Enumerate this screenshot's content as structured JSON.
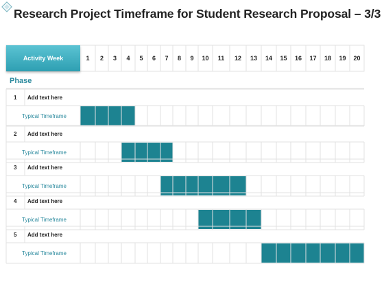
{
  "title": "Research Project Timeframe for Student Research Proposal – 3/3",
  "header_label": "Activity Week",
  "weeks": [
    "1",
    "2",
    "3",
    "4",
    "5",
    "6",
    "7",
    "8",
    "9",
    "10",
    "11",
    "12",
    "13",
    "14",
    "15",
    "16",
    "17",
    "18",
    "19",
    "20"
  ],
  "phase_label": "Phase",
  "bar_color": "#1d8391",
  "phases": [
    {
      "num": "1",
      "task": "Add text here",
      "timeframe": "Typical Timeframe",
      "start_week": 1,
      "end_week": 4
    },
    {
      "num": "2",
      "task": "Add text here",
      "timeframe": "Typical Timeframe",
      "start_week": 4,
      "end_week": 7
    },
    {
      "num": "3",
      "task": "Add text here",
      "timeframe": "Typical Timeframe",
      "start_week": 7,
      "end_week": 12
    },
    {
      "num": "4",
      "task": "Add text here",
      "timeframe": "Typical Timeframe",
      "start_week": 10,
      "end_week": 13
    },
    {
      "num": "5",
      "task": "Add text here",
      "timeframe": "Typical Timeframe",
      "start_week": 14,
      "end_week": 20
    }
  ]
}
